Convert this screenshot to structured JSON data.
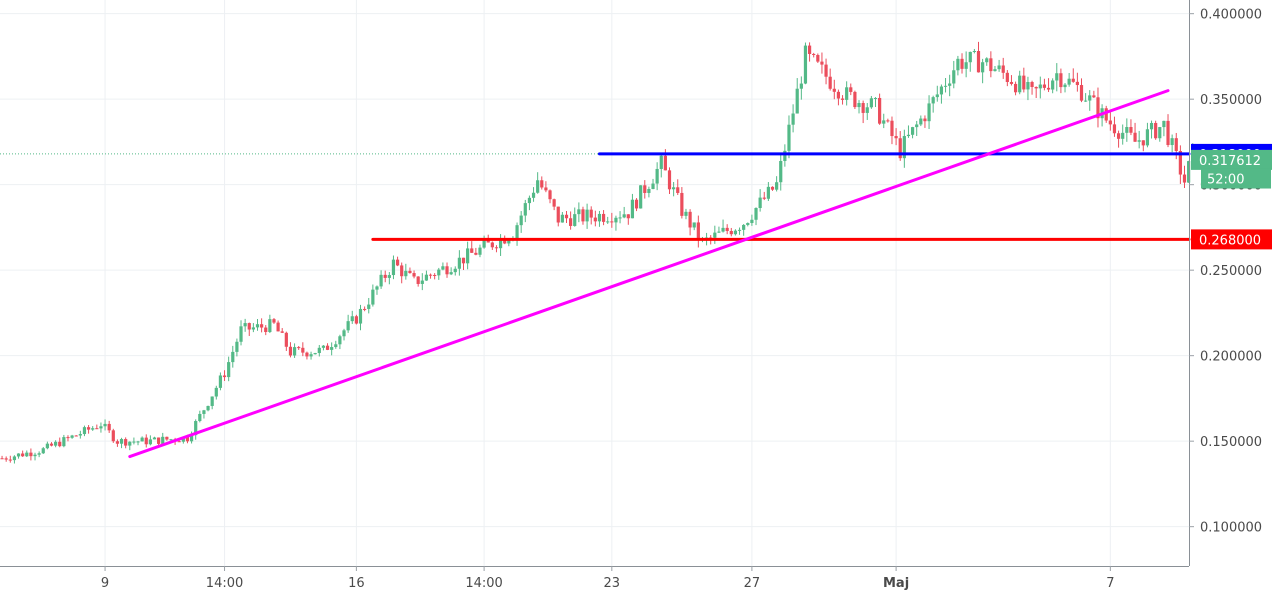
{
  "chart_data": {
    "type": "candlestick",
    "y_axis": {
      "side": "right",
      "min": 0.077,
      "max": 0.408,
      "ticks": [
        "0.400000",
        "0.350000",
        "0.300000",
        "0.250000",
        "0.200000",
        "0.150000",
        "0.100000"
      ],
      "tick_values": [
        0.4,
        0.35,
        0.3,
        0.25,
        0.2,
        0.15,
        0.1
      ]
    },
    "x_axis": {
      "ticks": [
        {
          "label": "9",
          "bar": 25,
          "bold": false
        },
        {
          "label": "14:00",
          "bar": 54,
          "bold": false
        },
        {
          "label": "16",
          "bar": 86,
          "bold": false
        },
        {
          "label": "14:00",
          "bar": 117,
          "bold": false
        },
        {
          "label": "23",
          "bar": 148,
          "bold": false
        },
        {
          "label": "27",
          "bar": 182,
          "bold": false
        },
        {
          "label": "Maj",
          "bar": 217,
          "bold": true
        },
        {
          "label": "7",
          "bar": 269,
          "bold": false
        }
      ]
    },
    "grid": true,
    "candles": {
      "count": 290,
      "anchors": [
        [
          0,
          0.14
        ],
        [
          10,
          0.145
        ],
        [
          24,
          0.16
        ],
        [
          28,
          0.15
        ],
        [
          35,
          0.15
        ],
        [
          45,
          0.152
        ],
        [
          54,
          0.19
        ],
        [
          58,
          0.215
        ],
        [
          66,
          0.218
        ],
        [
          70,
          0.202
        ],
        [
          78,
          0.203
        ],
        [
          86,
          0.222
        ],
        [
          95,
          0.254
        ],
        [
          100,
          0.243
        ],
        [
          108,
          0.252
        ],
        [
          116,
          0.262
        ],
        [
          124,
          0.272
        ],
        [
          130,
          0.303
        ],
        [
          135,
          0.28
        ],
        [
          145,
          0.282
        ],
        [
          152,
          0.284
        ],
        [
          160,
          0.312
        ],
        [
          165,
          0.285
        ],
        [
          170,
          0.266
        ],
        [
          180,
          0.278
        ],
        [
          188,
          0.3
        ],
        [
          195,
          0.375
        ],
        [
          205,
          0.352
        ],
        [
          212,
          0.345
        ],
        [
          218,
          0.32
        ],
        [
          225,
          0.345
        ],
        [
          232,
          0.372
        ],
        [
          238,
          0.372
        ],
        [
          245,
          0.362
        ],
        [
          250,
          0.352
        ],
        [
          256,
          0.365
        ],
        [
          262,
          0.355
        ],
        [
          268,
          0.338
        ],
        [
          275,
          0.325
        ],
        [
          282,
          0.335
        ],
        [
          287,
          0.302
        ],
        [
          289,
          0.318
        ]
      ],
      "up_color": "#53b987",
      "down_color": "#eb4d5c"
    },
    "lines": [
      {
        "name": "support-line",
        "color": "#ff0000",
        "from": {
          "bar": 90,
          "y": 0.268
        },
        "to": {
          "bar": 290,
          "y": 0.268
        }
      },
      {
        "name": "resistance-line",
        "color": "#0000ff",
        "from": {
          "bar": 145,
          "y": 0.318
        },
        "to": {
          "bar": 290,
          "y": 0.318
        }
      },
      {
        "name": "trend-line",
        "color": "#ff00ff",
        "from": {
          "bar": 31,
          "y": 0.141
        },
        "to": {
          "bar": 283,
          "y": 0.355
        }
      }
    ],
    "current_price_dotted": 0.318,
    "badges": [
      {
        "name": "resistance-price-badge",
        "text": "0.318000",
        "y": 0.318,
        "color": "#0000ff"
      },
      {
        "name": "last-price-badge",
        "text": "0.317612",
        "y": 0.3145,
        "color": "#53b987"
      },
      {
        "name": "countdown-badge",
        "text": "52:00",
        "y": 0.3036,
        "color": "#53b987"
      },
      {
        "name": "support-price-badge",
        "text": "0.268000",
        "y": 0.268,
        "color": "#ff0000"
      }
    ]
  }
}
